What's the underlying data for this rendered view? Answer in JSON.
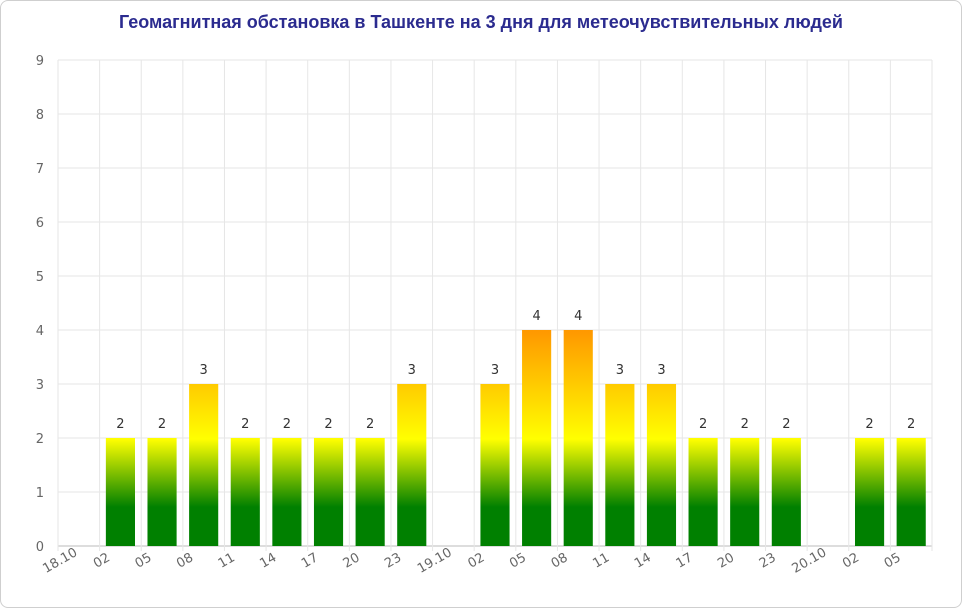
{
  "chart_data": {
    "type": "bar",
    "title": "Геомагнитная обстановка в Ташкенте на 3 дня для метеочувствительных людей",
    "xlabel": "",
    "ylabel": "",
    "ylim": [
      0,
      9
    ],
    "yticks": [
      "0",
      "1",
      "2",
      "3",
      "4",
      "5",
      "6",
      "7",
      "8",
      "9"
    ],
    "grid": true,
    "legend": "none",
    "categories": [
      "18.10",
      "02",
      "05",
      "08",
      "11",
      "14",
      "17",
      "20",
      "23",
      "19.10",
      "02",
      "05",
      "08",
      "11",
      "14",
      "17",
      "20",
      "23",
      "20.10",
      "02",
      "05"
    ],
    "values": [
      null,
      2,
      2,
      3,
      2,
      2,
      2,
      2,
      3,
      null,
      3,
      4,
      4,
      3,
      3,
      2,
      2,
      2,
      null,
      2,
      2
    ],
    "data_labels": [
      "",
      "2",
      "2",
      "3",
      "2",
      "2",
      "2",
      "2",
      "3",
      "",
      "3",
      "4",
      "4",
      "3",
      "3",
      "2",
      "2",
      "2",
      "",
      "2",
      "2"
    ],
    "colors": {
      "low": "#008000",
      "mid": "#ffff00",
      "high": "#ff9900",
      "title": "#2b2b8f",
      "grid": "#e6e6e6"
    }
  }
}
